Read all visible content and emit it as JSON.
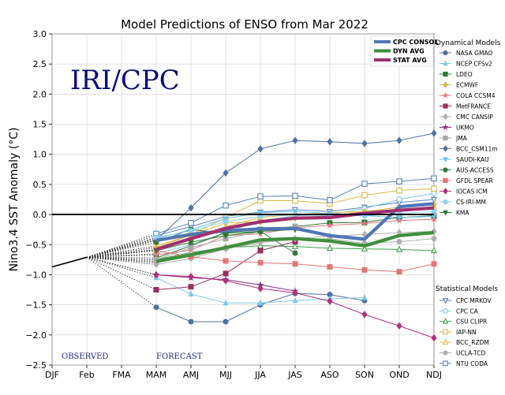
{
  "chart_data": {
    "type": "line",
    "title": "Model Predictions of ENSO from Mar 2022",
    "ylabel": "Nino3.4 SST Anomaly (°C)",
    "xlabel": "",
    "categories": [
      "DJF",
      "Feb",
      "FMA",
      "MAM",
      "AMJ",
      "MJJ",
      "JJA",
      "JAS",
      "ASO",
      "SON",
      "OND",
      "NDJ"
    ],
    "ylim": [
      -2.5,
      3.0
    ],
    "yticks": [
      "3.0",
      "2.5",
      "2.0",
      "1.5",
      "1.0",
      "0.5",
      "0.0",
      "−0.5",
      "−1.0",
      "−1.5",
      "−2.0",
      "−2.5"
    ],
    "watermark": "IRI/CPC",
    "observed_label": "OBSERVED",
    "forecast_label": "FORECAST",
    "observed": [
      -0.87,
      -0.71
    ],
    "grid": true,
    "legend_position": "right",
    "dyn_header": "Dynamical Models",
    "stat_header": "Statistical Models",
    "avg_series": [
      {
        "name": "CPC CONSOL",
        "color": "#4f76b6",
        "values": [
          null,
          null,
          null,
          -0.43,
          -0.33,
          -0.27,
          -0.24,
          -0.23,
          -0.35,
          -0.41,
          0.13,
          0.18
        ]
      },
      {
        "name": "DYN AVG",
        "color": "#3f8f3f",
        "values": [
          null,
          null,
          null,
          -0.78,
          -0.67,
          -0.55,
          -0.42,
          -0.4,
          -0.44,
          -0.52,
          -0.35,
          -0.3
        ]
      },
      {
        "name": "STAT AVG",
        "color": "#a0306f",
        "values": [
          null,
          null,
          null,
          -0.58,
          -0.4,
          -0.23,
          -0.12,
          -0.06,
          -0.05,
          0.02,
          0.07,
          0.11
        ]
      }
    ],
    "dyn_series": [
      {
        "name": "NASA GMAO",
        "color": "#4f6fa6",
        "marker": "circle",
        "values": [
          null,
          null,
          null,
          -1.54,
          -1.78,
          -1.78,
          -1.5,
          -1.31,
          -1.33,
          -1.43,
          null,
          null
        ]
      },
      {
        "name": "NCEP CFSv2",
        "color": "#7ec8e8",
        "marker": "tri-up",
        "values": [
          null,
          null,
          null,
          -1.05,
          -1.32,
          -1.47,
          -1.47,
          -1.43,
          -1.4,
          -1.38,
          null,
          null
        ]
      },
      {
        "name": "LDEO",
        "color": "#2d7a2d",
        "marker": "square",
        "values": [
          null,
          null,
          null,
          -0.72,
          -0.52,
          -0.3,
          -0.25,
          -0.2,
          -0.14,
          -0.13,
          -0.05,
          -0.02
        ]
      },
      {
        "name": "ECMWF",
        "color": "#d9b44a",
        "marker": "diamond",
        "values": [
          null,
          null,
          null,
          -0.55,
          -0.34,
          -0.14,
          -0.12,
          -0.06,
          -0.02,
          0.05,
          0.12,
          0.16
        ]
      },
      {
        "name": "COLA CCSM4",
        "color": "#e07a8a",
        "marker": "star",
        "values": [
          null,
          null,
          null,
          -0.67,
          -0.59,
          -0.35,
          -0.32,
          -0.22,
          -0.18,
          -0.15,
          -0.1,
          -0.08
        ]
      },
      {
        "name": "MetFRANCE",
        "color": "#9a2f5e",
        "marker": "square",
        "values": [
          null,
          null,
          null,
          -1.25,
          -1.2,
          -0.98,
          -0.6,
          -0.45,
          null,
          null,
          null,
          null
        ]
      },
      {
        "name": "CMC CANSIP",
        "color": "#b0b0b0",
        "marker": "diamond",
        "values": [
          null,
          null,
          null,
          -0.83,
          -0.73,
          -0.57,
          -0.47,
          -0.4,
          -0.36,
          -0.33,
          -0.3,
          -0.28
        ]
      },
      {
        "name": "UKMO",
        "color": "#8b2f7a",
        "marker": "star",
        "values": [
          null,
          null,
          null,
          -1.0,
          -1.05,
          -1.08,
          -1.17,
          -1.27,
          null,
          null,
          null,
          null
        ]
      },
      {
        "name": "JMA",
        "color": "#a8a8a8",
        "marker": "square",
        "values": [
          null,
          null,
          null,
          -0.75,
          -0.55,
          -0.4,
          -0.28,
          -0.2,
          null,
          null,
          null,
          null
        ]
      },
      {
        "name": "BCC_CSM11m",
        "color": "#4f6fa6",
        "marker": "diamond",
        "values": [
          null,
          null,
          null,
          -0.42,
          0.11,
          0.69,
          1.09,
          1.23,
          1.21,
          1.18,
          1.23,
          1.35
        ]
      },
      {
        "name": "SAUDI-KAU",
        "color": "#6ec0ea",
        "marker": "tri-down",
        "values": [
          null,
          null,
          null,
          -0.4,
          -0.25,
          -0.07,
          0.03,
          0.05,
          0.02,
          -0.02,
          -0.05,
          -0.03
        ]
      },
      {
        "name": "AUS-ACCESS",
        "color": "#2f7a3a",
        "marker": "circle",
        "values": [
          null,
          null,
          null,
          -0.46,
          -0.25,
          -0.31,
          -0.28,
          -0.64,
          null,
          null,
          null,
          null
        ]
      },
      {
        "name": "GFDL SPEAR",
        "color": "#e27676",
        "marker": "square",
        "values": [
          null,
          null,
          null,
          -0.6,
          -0.7,
          -0.77,
          -0.8,
          -0.82,
          -0.87,
          -0.92,
          -0.95,
          -0.82
        ]
      },
      {
        "name": "IOCAS ICM",
        "color": "#b0307a",
        "marker": "diamond",
        "values": [
          null,
          null,
          null,
          -1.0,
          -1.03,
          -1.1,
          -1.23,
          -1.3,
          -1.44,
          -1.66,
          -1.85,
          -2.05
        ]
      },
      {
        "name": "CS-IRI-MM",
        "color": "#8fd1f0",
        "marker": "circle",
        "values": [
          null,
          null,
          null,
          -0.38,
          -0.27,
          -0.12,
          -0.03,
          0.0,
          -0.02,
          -0.02,
          0.02,
          0.05
        ]
      },
      {
        "name": "KMA",
        "color": "#2a7a2a",
        "marker": "tri-down",
        "values": [
          null,
          null,
          null,
          -0.6,
          -0.46,
          -0.35,
          -0.28,
          -0.25,
          null,
          null,
          null,
          null
        ]
      }
    ],
    "stat_series": [
      {
        "name": "CPC MRKOV",
        "color": "#5a7fbf",
        "marker": "tri-down-open",
        "values": [
          null,
          null,
          null,
          -0.35,
          -0.2,
          -0.03,
          0.04,
          0.08,
          0.05,
          0.12,
          0.2,
          0.25
        ]
      },
      {
        "name": "CPC CA",
        "color": "#7cc8e8",
        "marker": "circle-open",
        "values": [
          null,
          null,
          null,
          -0.65,
          -0.5,
          -0.3,
          -0.1,
          -0.02,
          0.0,
          0.1,
          0.25,
          0.35
        ]
      },
      {
        "name": "CSU CLIPR",
        "color": "#3f9f4f",
        "marker": "tri-up-open",
        "values": [
          null,
          null,
          null,
          -0.75,
          -0.63,
          -0.55,
          -0.52,
          -0.53,
          -0.56,
          -0.57,
          -0.58,
          -0.6
        ]
      },
      {
        "name": "IAP-NN",
        "color": "#d8b84a",
        "marker": "square-open",
        "values": [
          null,
          null,
          null,
          -0.52,
          -0.34,
          -0.05,
          0.23,
          0.23,
          0.18,
          0.32,
          0.4,
          0.43
        ]
      },
      {
        "name": "BCC_RZDM",
        "color": "#e8b84a",
        "marker": "tri-up-open",
        "values": [
          null,
          null,
          null,
          -0.58,
          -0.4,
          -0.2,
          -0.05,
          0.0,
          0.03,
          0.05,
          0.08,
          0.12
        ]
      },
      {
        "name": "UCLA-TCD",
        "color": "#b0b0b0",
        "marker": "circle",
        "values": [
          null,
          null,
          null,
          -0.8,
          -0.68,
          -0.55,
          -0.45,
          -0.42,
          -0.4,
          -0.48,
          -0.45,
          -0.4
        ]
      },
      {
        "name": "NTU CODA",
        "color": "#5a7fbf",
        "marker": "square-open",
        "values": [
          null,
          null,
          null,
          -0.32,
          -0.14,
          0.15,
          0.3,
          0.31,
          0.24,
          0.51,
          0.55,
          0.6
        ]
      }
    ]
  }
}
